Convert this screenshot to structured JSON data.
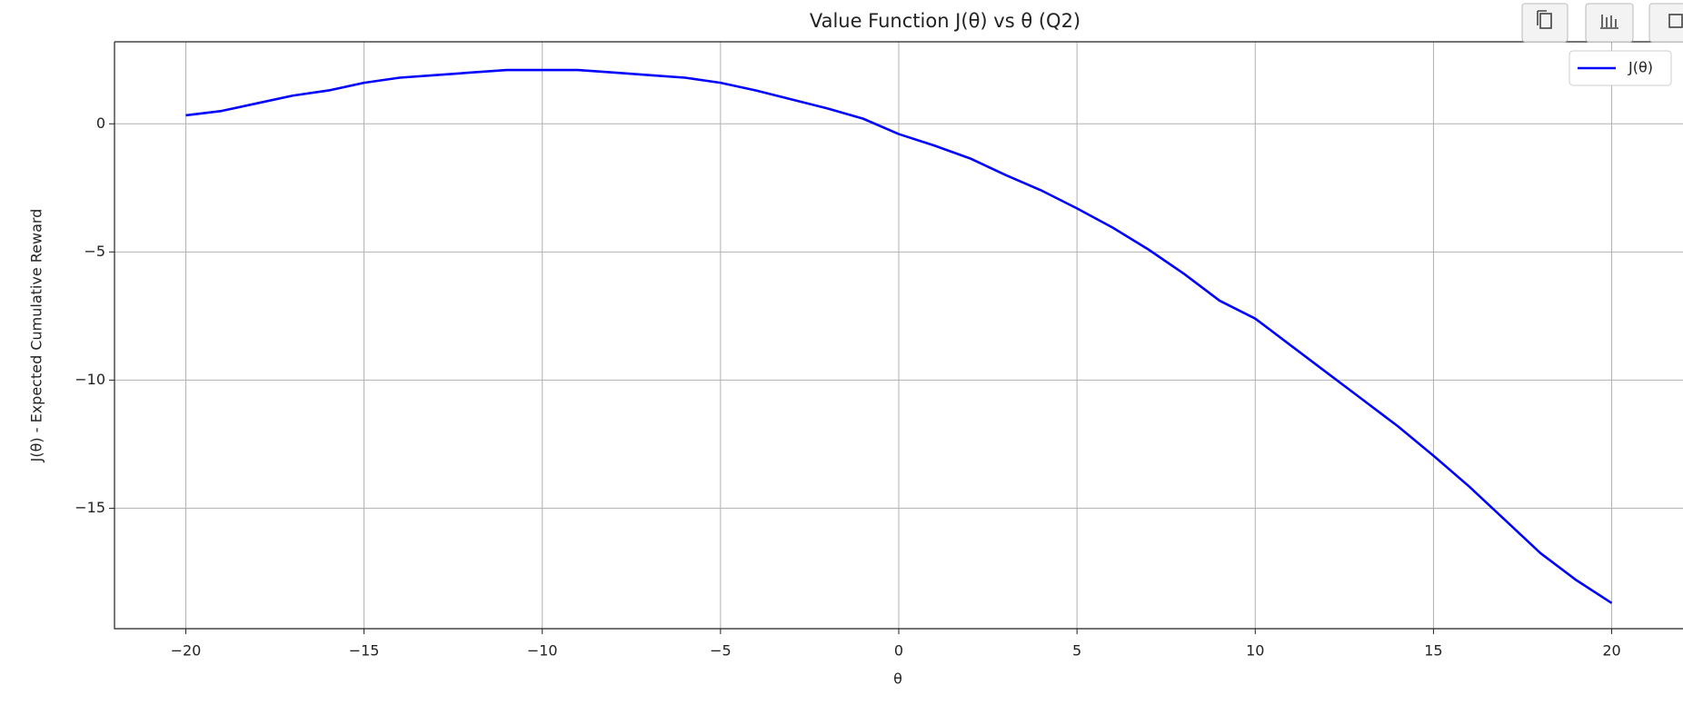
{
  "chart_data": {
    "type": "line",
    "title": "Value Function J(θ) vs θ (Q2)",
    "x_label": "θ",
    "y_label": "J(θ) - Expected Cumulative Reward",
    "x": [
      -20,
      -19,
      -18,
      -17,
      -16,
      -15,
      -14,
      -13,
      -12,
      -11,
      -10,
      -9,
      -8,
      -7,
      -6,
      -5,
      -4,
      -3,
      -2,
      -1,
      0,
      1,
      2,
      3,
      4,
      5,
      6,
      7,
      8,
      9,
      10,
      11,
      12,
      13,
      14,
      15,
      16,
      17,
      18,
      19,
      20
    ],
    "series": [
      {
        "name": "J(θ)",
        "color": "#0000ff",
        "values": [
          0.33,
          0.5,
          0.8,
          1.1,
          1.3,
          1.6,
          1.8,
          1.9,
          2.0,
          2.1,
          2.1,
          2.1,
          2.0,
          1.9,
          1.8,
          1.6,
          1.3,
          0.95,
          0.6,
          0.2,
          -0.4,
          -0.85,
          -1.35,
          -2.0,
          -2.6,
          -3.3,
          -4.05,
          -4.9,
          -5.85,
          -6.9,
          -7.6,
          -8.65,
          -9.7,
          -10.75,
          -11.8,
          -12.95,
          -14.15,
          -15.45,
          -16.75,
          -17.8,
          -18.7
        ]
      }
    ],
    "xlim": [
      -22,
      22
    ],
    "ylim": [
      -19.7,
      3.2
    ],
    "xticks": [
      {
        "value": -20,
        "label": "−20"
      },
      {
        "value": -15,
        "label": "−15"
      },
      {
        "value": -10,
        "label": "−10"
      },
      {
        "value": -5,
        "label": "−5"
      },
      0,
      5,
      10,
      15,
      20
    ],
    "yticks": [
      0,
      {
        "value": -5,
        "label": "−5"
      },
      {
        "value": -10,
        "label": "−10"
      },
      {
        "value": -15,
        "label": "−15"
      }
    ],
    "grid": true,
    "legend": "upper right"
  }
}
